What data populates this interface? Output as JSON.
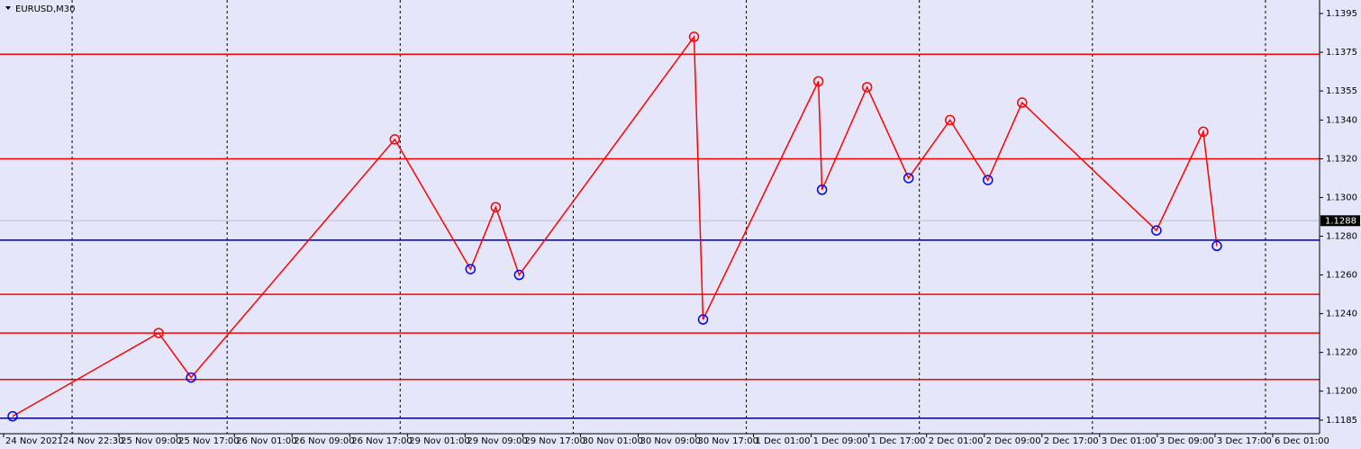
{
  "chart_data": {
    "type": "line",
    "title": "EURUSD,M30",
    "x": [
      2.5,
      43,
      52,
      108.5,
      129.5,
      136.5,
      143,
      191.5,
      194,
      226,
      227,
      239.5,
      251,
      262.5,
      273,
      282.5,
      319.75,
      332.75,
      336.5
    ],
    "series": [
      {
        "color": "#ff0000",
        "values": [
          1.1187,
          1.123,
          1.1207,
          1.133,
          1.1263,
          1.1295,
          1.126,
          1.1383,
          1.1237,
          1.136,
          1.1304,
          1.1357,
          1.131,
          1.134,
          1.1309,
          1.1349,
          1.1283,
          1.1334,
          1.1275
        ]
      }
    ],
    "levels": [
      {
        "value": 1.1374,
        "color": "#ff0000"
      },
      {
        "value": 1.132,
        "color": "#ff0000"
      },
      {
        "value": 1.125,
        "color": "#ff0000"
      },
      {
        "value": 1.123,
        "color": "#ff0000"
      },
      {
        "value": 1.1206,
        "color": "#ff0000"
      },
      {
        "value": 1.1278,
        "color": "#000080"
      },
      {
        "value": 1.1186,
        "color": "#000080"
      }
    ],
    "current_price": 1.1288,
    "xlim": [
      -1,
      365
    ],
    "xticks": [
      {
        "value": 0,
        "label": "24 Nov 2021"
      },
      {
        "value": 16,
        "label": "24 Nov 22:30"
      },
      {
        "value": 32,
        "label": "25 Nov 09:00"
      },
      {
        "value": 48,
        "label": "25 Nov 17:00"
      },
      {
        "value": 64,
        "label": "26 Nov 01:00"
      },
      {
        "value": 80,
        "label": "26 Nov 09:00"
      },
      {
        "value": 96,
        "label": "26 Nov 17:00"
      },
      {
        "value": 112,
        "label": "29 Nov 01:00"
      },
      {
        "value": 128,
        "label": "29 Nov 09:00"
      },
      {
        "value": 144,
        "label": "29 Nov 17:00"
      },
      {
        "value": 160,
        "label": "30 Nov 01:00"
      },
      {
        "value": 176,
        "label": "30 Nov 09:00"
      },
      {
        "value": 192,
        "label": "30 Nov 17:00"
      },
      {
        "value": 208,
        "label": "1 Dec 01:00"
      },
      {
        "value": 224,
        "label": "1 Dec 09:00"
      },
      {
        "value": 240,
        "label": "1 Dec 17:00"
      },
      {
        "value": 256,
        "label": "2 Dec 01:00"
      },
      {
        "value": 272,
        "label": "2 Dec 09:00"
      },
      {
        "value": 288,
        "label": "2 Dec 17:00"
      },
      {
        "value": 304,
        "label": "3 Dec 01:00"
      },
      {
        "value": 320,
        "label": "3 Dec 09:00"
      },
      {
        "value": 336,
        "label": "3 Dec 17:00"
      },
      {
        "value": 352,
        "label": "6 Dec 01:00"
      }
    ],
    "xgrid": [
      19,
      62,
      110,
      158,
      206,
      254,
      302,
      350
    ],
    "ylim": [
      1.1178,
      1.1402
    ],
    "yticks": [
      1.1395,
      1.1375,
      1.1355,
      {
        "value": 1.134,
        "label": "1.1340"
      },
      {
        "value": 1.132,
        "label": "1.1320"
      },
      {
        "value": 1.13,
        "label": "1.1300"
      },
      {
        "value": 1.128,
        "label": "1.1280"
      },
      {
        "value": 1.126,
        "label": "1.1260"
      },
      {
        "value": 1.124,
        "label": "1.1240"
      },
      {
        "value": 1.122,
        "label": "1.1220"
      },
      {
        "value": 1.12,
        "label": "1.1200"
      },
      1.1185
    ]
  }
}
